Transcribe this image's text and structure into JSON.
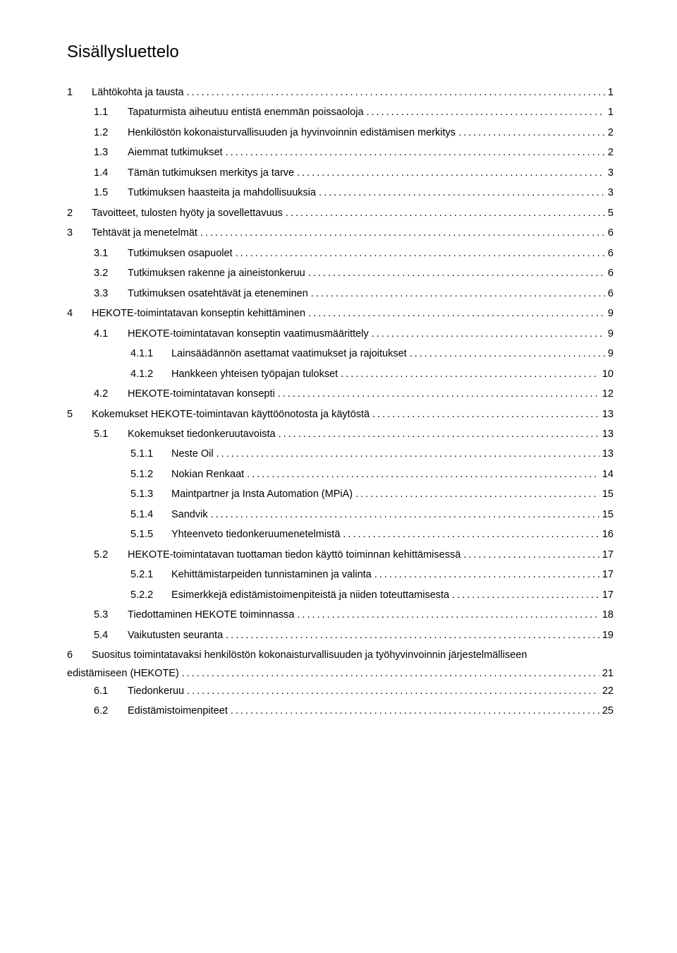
{
  "title": "Sisällysluettelo",
  "colors": {
    "text": "#000000",
    "background": "#ffffff"
  },
  "fonts": {
    "title_size": 24,
    "body_size": 14.5,
    "family": "Arial"
  },
  "toc": [
    {
      "level": 1,
      "num": "1",
      "label": "Lähtökohta ja tausta",
      "page": "1"
    },
    {
      "level": 2,
      "num": "1.1",
      "label": "Tapaturmista aiheutuu entistä enemmän poissaoloja",
      "page": "1"
    },
    {
      "level": 2,
      "num": "1.2",
      "label": "Henkilöstön kokonaisturvallisuuden ja hyvinvoinnin edistämisen merkitys",
      "page": "2"
    },
    {
      "level": 2,
      "num": "1.3",
      "label": "Aiemmat tutkimukset",
      "page": "2"
    },
    {
      "level": 2,
      "num": "1.4",
      "label": "Tämän tutkimuksen merkitys ja tarve",
      "page": "3"
    },
    {
      "level": 2,
      "num": "1.5",
      "label": "Tutkimuksen haasteita ja mahdollisuuksia",
      "page": "3"
    },
    {
      "level": 1,
      "num": "2",
      "label": "Tavoitteet, tulosten hyöty ja sovellettavuus",
      "page": "5"
    },
    {
      "level": 1,
      "num": "3",
      "label": "Tehtävät ja menetelmät",
      "page": "6"
    },
    {
      "level": 2,
      "num": "3.1",
      "label": "Tutkimuksen osapuolet",
      "page": "6"
    },
    {
      "level": 2,
      "num": "3.2",
      "label": "Tutkimuksen rakenne ja aineistonkeruu",
      "page": "6"
    },
    {
      "level": 2,
      "num": "3.3",
      "label": "Tutkimuksen osatehtävät ja eteneminen",
      "page": "6"
    },
    {
      "level": 1,
      "num": "4",
      "label": "HEKOTE-toimintatavan konseptin kehittäminen",
      "page": "9"
    },
    {
      "level": 2,
      "num": "4.1",
      "label": "HEKOTE-toimintatavan konseptin vaatimusmäärittely",
      "page": "9"
    },
    {
      "level": 3,
      "num": "4.1.1",
      "label": "Lainsäädännön asettamat vaatimukset ja rajoitukset",
      "page": "9"
    },
    {
      "level": 3,
      "num": "4.1.2",
      "label": "Hankkeen yhteisen työpajan tulokset",
      "page": "10"
    },
    {
      "level": 2,
      "num": "4.2",
      "label": "HEKOTE-toimintatavan konsepti",
      "page": "12"
    },
    {
      "level": 1,
      "num": "5",
      "label": "Kokemukset HEKOTE-toimintavan käyttöönotosta ja käytöstä",
      "page": "13"
    },
    {
      "level": 2,
      "num": "5.1",
      "label": "Kokemukset tiedonkeruutavoista",
      "page": "13"
    },
    {
      "level": 3,
      "num": "5.1.1",
      "label": "Neste Oil",
      "page": "13"
    },
    {
      "level": 3,
      "num": "5.1.2",
      "label": "Nokian Renkaat",
      "page": "14"
    },
    {
      "level": 3,
      "num": "5.1.3",
      "label": "Maintpartner ja Insta Automation (MPiA)",
      "page": "15"
    },
    {
      "level": 3,
      "num": "5.1.4",
      "label": "Sandvik",
      "page": "15"
    },
    {
      "level": 3,
      "num": "5.1.5",
      "label": "Yhteenveto tiedonkeruumenetelmistä",
      "page": "16"
    },
    {
      "level": 2,
      "num": "5.2",
      "label": "HEKOTE-toimintatavan tuottaman tiedon käyttö toiminnan kehittämisessä",
      "page": "17"
    },
    {
      "level": 3,
      "num": "5.2.1",
      "label": "Kehittämistarpeiden tunnistaminen ja valinta",
      "page": "17"
    },
    {
      "level": 3,
      "num": "5.2.2",
      "label": "Esimerkkejä edistämistoimenpiteistä ja niiden toteuttamisesta",
      "page": "17"
    },
    {
      "level": 2,
      "num": "5.3",
      "label": "Tiedottaminen HEKOTE toiminnassa",
      "page": "18"
    },
    {
      "level": 2,
      "num": "5.4",
      "label": "Vaikutusten seuranta",
      "page": "19"
    },
    {
      "level": "para",
      "num": "6",
      "label_line1": "Suositus toimintatavaksi henkilöstön kokonaisturvallisuuden ja työhyvinvoinnin järjestelmälliseen",
      "label_line2": "edistämiseen (HEKOTE)",
      "page": "21"
    },
    {
      "level": 2,
      "num": "6.1",
      "label": "Tiedonkeruu",
      "page": "22"
    },
    {
      "level": 2,
      "num": "6.2",
      "label": "Edistämistoimenpiteet",
      "page": "25"
    }
  ]
}
